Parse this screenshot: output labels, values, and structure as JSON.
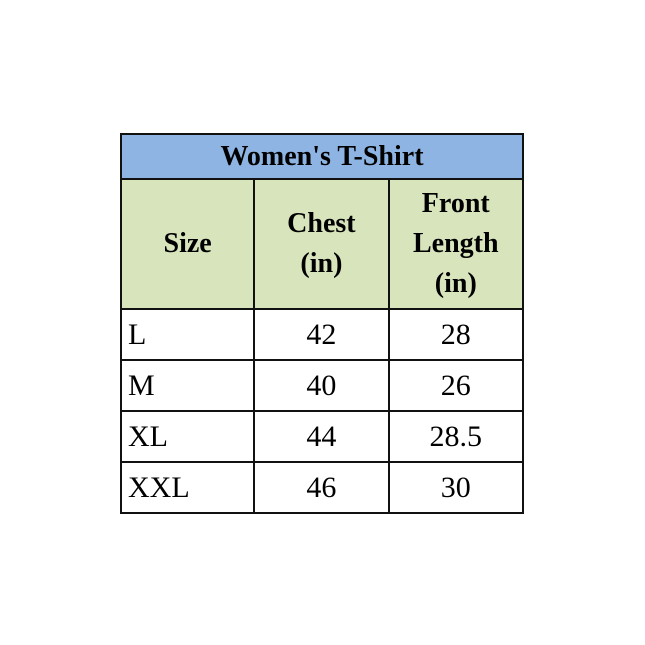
{
  "table": {
    "title": "Women's T-Shirt",
    "headers": [
      "Size",
      "Chest (in)",
      "Front Length (in)"
    ],
    "header_lines": [
      [
        "Size"
      ],
      [
        "Chest",
        "(in)"
      ],
      [
        "Front",
        "Length",
        "(in)"
      ]
    ],
    "rows": [
      [
        "L",
        "42",
        "28"
      ],
      [
        "M",
        "40",
        "26"
      ],
      [
        "XL",
        "44",
        "28.5"
      ],
      [
        "XXL",
        "46",
        "30"
      ]
    ]
  },
  "colors": {
    "title_bg": "#8db4e2",
    "header_bg": "#d8e4bc"
  }
}
